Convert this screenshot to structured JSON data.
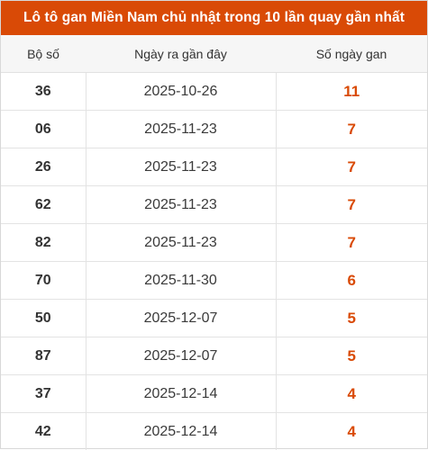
{
  "title": "Lô tô gan Miền Nam chủ nhật trong 10 lần quay gần nhất",
  "headers": {
    "bo_so": "Bộ số",
    "ngay": "Ngày ra gần đây",
    "so_ngay_gan": "Số ngày gan"
  },
  "rows": [
    {
      "bo_so": "36",
      "ngay": "2025-10-26",
      "gan": "11"
    },
    {
      "bo_so": "06",
      "ngay": "2025-11-23",
      "gan": "7"
    },
    {
      "bo_so": "26",
      "ngay": "2025-11-23",
      "gan": "7"
    },
    {
      "bo_so": "62",
      "ngay": "2025-11-23",
      "gan": "7"
    },
    {
      "bo_so": "82",
      "ngay": "2025-11-23",
      "gan": "7"
    },
    {
      "bo_so": "70",
      "ngay": "2025-11-30",
      "gan": "6"
    },
    {
      "bo_so": "50",
      "ngay": "2025-12-07",
      "gan": "5"
    },
    {
      "bo_so": "87",
      "ngay": "2025-12-07",
      "gan": "5"
    },
    {
      "bo_so": "37",
      "ngay": "2025-12-14",
      "gan": "4"
    },
    {
      "bo_so": "42",
      "ngay": "2025-12-14",
      "gan": "4"
    }
  ],
  "colors": {
    "accent": "#d94a06",
    "header_bg": "#f6f6f6",
    "border": "#e3e3e3"
  }
}
